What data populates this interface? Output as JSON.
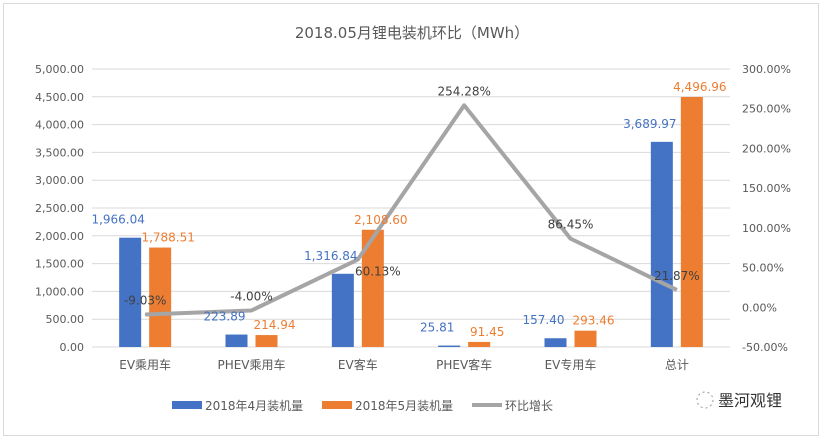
{
  "chart_data": {
    "type": "bar",
    "title": "2018.05月锂电装机环比（MWh）",
    "categories": [
      "EV乘用车",
      "PHEV乘用车",
      "EV客车",
      "PHEV客车",
      "EV专用车",
      "总计"
    ],
    "series": [
      {
        "name": "2018年4月装机量",
        "type": "bar",
        "axis": "left",
        "color": "#4472c4",
        "values": [
          1966.04,
          223.89,
          1316.84,
          25.81,
          157.4,
          3689.97
        ],
        "labels": [
          "1,966.04",
          "223.89",
          "1,316.84",
          "25.81",
          "157.40",
          "3,689.97"
        ]
      },
      {
        "name": "2018年5月装机量",
        "type": "bar",
        "axis": "left",
        "color": "#ed7d31",
        "values": [
          1788.51,
          214.94,
          2108.6,
          91.45,
          293.46,
          4496.96
        ],
        "labels": [
          "1,788.51",
          "214.94",
          "2,108.60",
          "91.45",
          "293.46",
          "4,496.96"
        ]
      },
      {
        "name": "环比增长",
        "type": "line",
        "axis": "right",
        "color": "#a5a5a5",
        "values": [
          -9.03,
          -4.0,
          60.13,
          254.28,
          86.45,
          21.87
        ],
        "labels": [
          "-9.03%",
          "-4.00%",
          "60.13%",
          "254.28%",
          "86.45%",
          "21.87%"
        ]
      }
    ],
    "y_left": {
      "range": [
        0,
        5000
      ],
      "ticks": [
        "0.00",
        "500.00",
        "1,000.00",
        "1,500.00",
        "2,000.00",
        "2,500.00",
        "3,000.00",
        "3,500.00",
        "4,000.00",
        "4,500.00",
        "5,000.00"
      ]
    },
    "y_right": {
      "range": [
        -50,
        300
      ],
      "ticks": [
        "-50.00%",
        "0.00%",
        "50.00%",
        "100.00%",
        "150.00%",
        "200.00%",
        "250.00%",
        "300.00%"
      ]
    },
    "grid": true,
    "legend": "bottom"
  },
  "watermark": "墨河观锂"
}
